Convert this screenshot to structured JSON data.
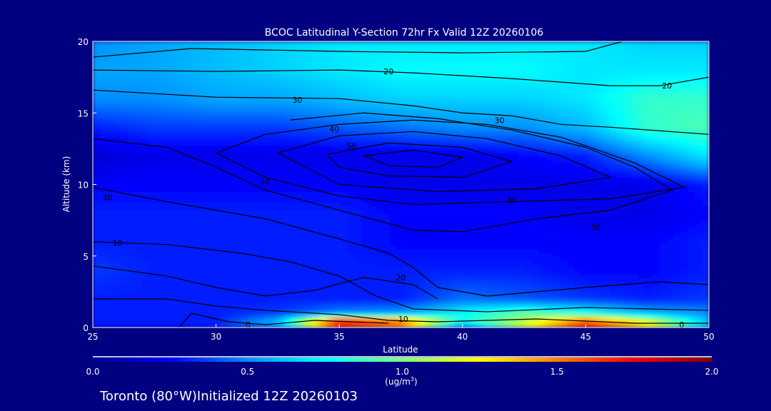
{
  "chart_data": {
    "type": "heatmap",
    "title": "BCOC Latitudinal Y-Section 72hr  Fx Valid 12Z 20260106",
    "xlabel": "Latitude",
    "ylabel": "Altitude (km)",
    "xlim": [
      25,
      50
    ],
    "ylim": [
      0,
      20
    ],
    "xticks": [
      "25",
      "30",
      "35",
      "40",
      "45",
      "50"
    ],
    "yticks": [
      "0",
      "5",
      "10",
      "15",
      "20"
    ],
    "grid": false,
    "colorbar": {
      "range": [
        0,
        2
      ],
      "ticks": [
        "0.0",
        "0.5",
        "1.0",
        "1.5",
        "2.0"
      ],
      "unit_label": "(ug/m",
      "unit_sup": "3",
      "unit_close": ")",
      "colors": [
        "#00008f",
        "#0000ff",
        "#0090ff",
        "#00ffff",
        "#80ff80",
        "#ffff00",
        "#ff8000",
        "#ff0000",
        "#800000"
      ]
    },
    "lat": [
      25,
      27.5,
      30,
      32.5,
      35,
      37.5,
      40,
      42.5,
      45,
      47.5,
      50
    ],
    "alt": [
      0,
      0.5,
      1,
      2,
      4,
      6,
      8,
      10,
      12,
      14,
      16,
      18,
      20
    ],
    "values": [
      [
        0.25,
        0.25,
        0.3,
        0.5,
        1.6,
        1.4,
        0.4,
        1.2,
        1.7,
        1.3,
        0.6
      ],
      [
        0.3,
        0.3,
        0.3,
        0.6,
        1.85,
        1.6,
        0.8,
        1.1,
        1.6,
        1.2,
        0.6
      ],
      [
        0.3,
        0.3,
        0.3,
        0.35,
        0.5,
        0.55,
        0.75,
        0.95,
        0.8,
        0.6,
        0.5
      ],
      [
        0.3,
        0.3,
        0.3,
        0.3,
        0.3,
        0.3,
        0.45,
        0.4,
        0.35,
        0.3,
        0.35
      ],
      [
        0.35,
        0.3,
        0.3,
        0.3,
        0.3,
        0.3,
        0.3,
        0.3,
        0.25,
        0.25,
        0.3
      ],
      [
        0.3,
        0.3,
        0.3,
        0.3,
        0.3,
        0.25,
        0.25,
        0.25,
        0.25,
        0.25,
        0.3
      ],
      [
        0.3,
        0.3,
        0.3,
        0.3,
        0.3,
        0.25,
        0.25,
        0.25,
        0.2,
        0.2,
        0.25
      ],
      [
        0.25,
        0.25,
        0.25,
        0.25,
        0.25,
        0.2,
        0.2,
        0.2,
        0.2,
        0.2,
        0.3
      ],
      [
        0.15,
        0.2,
        0.2,
        0.2,
        0.2,
        0.2,
        0.2,
        0.25,
        0.3,
        0.5,
        0.7
      ],
      [
        0.3,
        0.35,
        0.35,
        0.35,
        0.4,
        0.45,
        0.5,
        0.5,
        0.6,
        0.85,
        0.9
      ],
      [
        0.5,
        0.5,
        0.55,
        0.55,
        0.6,
        0.65,
        0.65,
        0.65,
        0.7,
        0.85,
        0.85
      ],
      [
        0.55,
        0.55,
        0.6,
        0.65,
        0.7,
        0.75,
        0.75,
        0.75,
        0.7,
        0.7,
        0.7
      ],
      [
        0.5,
        0.55,
        0.6,
        0.65,
        0.7,
        0.7,
        0.7,
        0.7,
        0.7,
        0.65,
        0.65
      ]
    ],
    "contours": [
      {
        "level": 20,
        "closed": false,
        "points": [
          [
            25,
            18.9
          ],
          [
            29,
            19.5
          ],
          [
            35,
            19.3
          ],
          [
            40,
            19.2
          ],
          [
            45,
            19.3
          ],
          [
            46.5,
            20
          ]
        ]
      },
      {
        "level": 20,
        "closed": false,
        "points": [
          [
            25,
            18.0
          ],
          [
            30,
            17.9
          ],
          [
            35,
            18.0
          ],
          [
            38,
            17.8
          ],
          [
            42,
            17.4
          ],
          [
            46,
            16.9
          ],
          [
            48,
            16.9
          ],
          [
            50,
            17.5
          ]
        ]
      },
      {
        "level": 30,
        "closed": false,
        "points": [
          [
            25,
            16.6
          ],
          [
            30,
            16.1
          ],
          [
            35,
            16.0
          ],
          [
            38,
            15.5
          ],
          [
            40,
            15.0
          ],
          [
            42,
            14.8
          ],
          [
            44,
            14.2
          ],
          [
            46,
            14.0
          ],
          [
            50,
            13.5
          ]
        ]
      },
      {
        "level": 30,
        "closed": false,
        "points": [
          [
            25,
            13.2
          ],
          [
            28,
            12.6
          ],
          [
            30,
            11.2
          ],
          [
            32,
            9.6
          ],
          [
            35,
            8.2
          ],
          [
            38,
            6.8
          ],
          [
            40,
            6.7
          ],
          [
            43,
            7.6
          ],
          [
            46,
            8.2
          ],
          [
            48.5,
            9.6
          ],
          [
            47,
            11.2
          ],
          [
            45,
            12.6
          ],
          [
            42,
            13.8
          ],
          [
            39,
            14.6
          ],
          [
            36,
            15.0
          ],
          [
            33,
            14.5
          ]
        ]
      },
      {
        "level": 40,
        "closed": true,
        "points": [
          [
            30,
            12.2
          ],
          [
            32,
            13.5
          ],
          [
            35,
            14.2
          ],
          [
            38,
            14.5
          ],
          [
            41,
            14.2
          ],
          [
            44,
            13.3
          ],
          [
            47,
            11.5
          ],
          [
            49,
            9.8
          ],
          [
            46,
            9.0
          ],
          [
            42,
            8.8
          ],
          [
            38,
            8.6
          ],
          [
            35,
            9.2
          ],
          [
            32,
            10.5
          ]
        ]
      },
      {
        "level": 50,
        "closed": true,
        "points": [
          [
            32.5,
            12.2
          ],
          [
            35,
            13.4
          ],
          [
            38,
            13.7
          ],
          [
            41,
            13.2
          ],
          [
            44,
            12.0
          ],
          [
            46,
            10.5
          ],
          [
            43,
            9.7
          ],
          [
            39,
            9.5
          ],
          [
            35,
            10.0
          ]
        ]
      },
      {
        "level": 60,
        "closed": true,
        "points": [
          [
            34.5,
            12.1
          ],
          [
            37,
            12.9
          ],
          [
            40,
            12.6
          ],
          [
            42,
            11.6
          ],
          [
            40,
            10.5
          ],
          [
            37,
            10.6
          ],
          [
            35,
            11.2
          ]
        ]
      },
      {
        "level": 70,
        "closed": true,
        "points": [
          [
            36,
            12.0
          ],
          [
            38,
            12.4
          ],
          [
            40,
            11.9
          ],
          [
            39,
            11.2
          ],
          [
            37,
            11.3
          ]
        ]
      },
      {
        "level": 10,
        "closed": false,
        "points": [
          [
            25,
            9.8
          ],
          [
            28,
            8.8
          ],
          [
            32,
            7.6
          ],
          [
            35,
            6.2
          ],
          [
            37,
            5.2
          ],
          [
            38,
            4.2
          ],
          [
            39,
            2.8
          ],
          [
            41,
            2.2
          ],
          [
            45,
            2.8
          ],
          [
            48,
            3.2
          ],
          [
            50,
            3.0
          ]
        ]
      },
      {
        "level": 10,
        "closed": false,
        "points": [
          [
            25,
            6.0
          ],
          [
            28,
            5.8
          ],
          [
            31,
            5.2
          ],
          [
            33,
            4.6
          ],
          [
            35,
            3.6
          ],
          [
            36.5,
            2.2
          ],
          [
            38,
            1.3
          ],
          [
            41,
            1.1
          ],
          [
            45,
            1.4
          ],
          [
            50,
            1.2
          ]
        ]
      },
      {
        "level": 20,
        "closed": false,
        "points": [
          [
            25,
            4.3
          ],
          [
            28,
            3.6
          ],
          [
            30,
            2.8
          ],
          [
            32,
            2.2
          ],
          [
            34,
            2.6
          ],
          [
            36,
            3.5
          ],
          [
            38,
            3.0
          ],
          [
            39,
            2.0
          ]
        ]
      },
      {
        "level": 10,
        "closed": false,
        "points": [
          [
            25,
            2.0
          ],
          [
            28,
            2.0
          ],
          [
            30,
            1.5
          ],
          [
            32,
            1.2
          ],
          [
            35,
            0.9
          ],
          [
            37,
            0.5
          ],
          [
            39,
            0.4
          ],
          [
            43,
            0.6
          ],
          [
            47,
            0.3
          ],
          [
            50,
            0.3
          ]
        ]
      },
      {
        "level": 0,
        "closed": false,
        "points": [
          [
            28.5,
            0
          ],
          [
            29,
            1.0
          ],
          [
            30.5,
            0.4
          ],
          [
            32,
            0.2
          ],
          [
            34,
            0.5
          ],
          [
            37,
            0.3
          ]
        ]
      }
    ],
    "contour_labels": [
      {
        "text": "20",
        "lat": 37.0,
        "alt": 17.9
      },
      {
        "text": "20",
        "lat": 48.3,
        "alt": 16.9
      },
      {
        "text": "30",
        "lat": 33.3,
        "alt": 15.9
      },
      {
        "text": "30",
        "lat": 41.5,
        "alt": 14.5
      },
      {
        "text": "40",
        "lat": 34.8,
        "alt": 13.9
      },
      {
        "text": "50",
        "lat": 35.5,
        "alt": 12.7
      },
      {
        "text": "40",
        "lat": 32.0,
        "alt": 10.2
      },
      {
        "text": "30",
        "lat": 25.6,
        "alt": 9.1
      },
      {
        "text": "30",
        "lat": 42.0,
        "alt": 8.9
      },
      {
        "text": "30",
        "lat": 45.4,
        "alt": 7.0
      },
      {
        "text": "10",
        "lat": 26.0,
        "alt": 5.9
      },
      {
        "text": "20",
        "lat": 37.5,
        "alt": 3.5
      },
      {
        "text": "10",
        "lat": 37.6,
        "alt": 0.6
      },
      {
        "text": "0",
        "lat": 31.3,
        "alt": 0.2
      },
      {
        "text": "0",
        "lat": 48.9,
        "alt": 0.2
      }
    ]
  },
  "footer": "Toronto (80°W)Initialized 12Z 20260103"
}
